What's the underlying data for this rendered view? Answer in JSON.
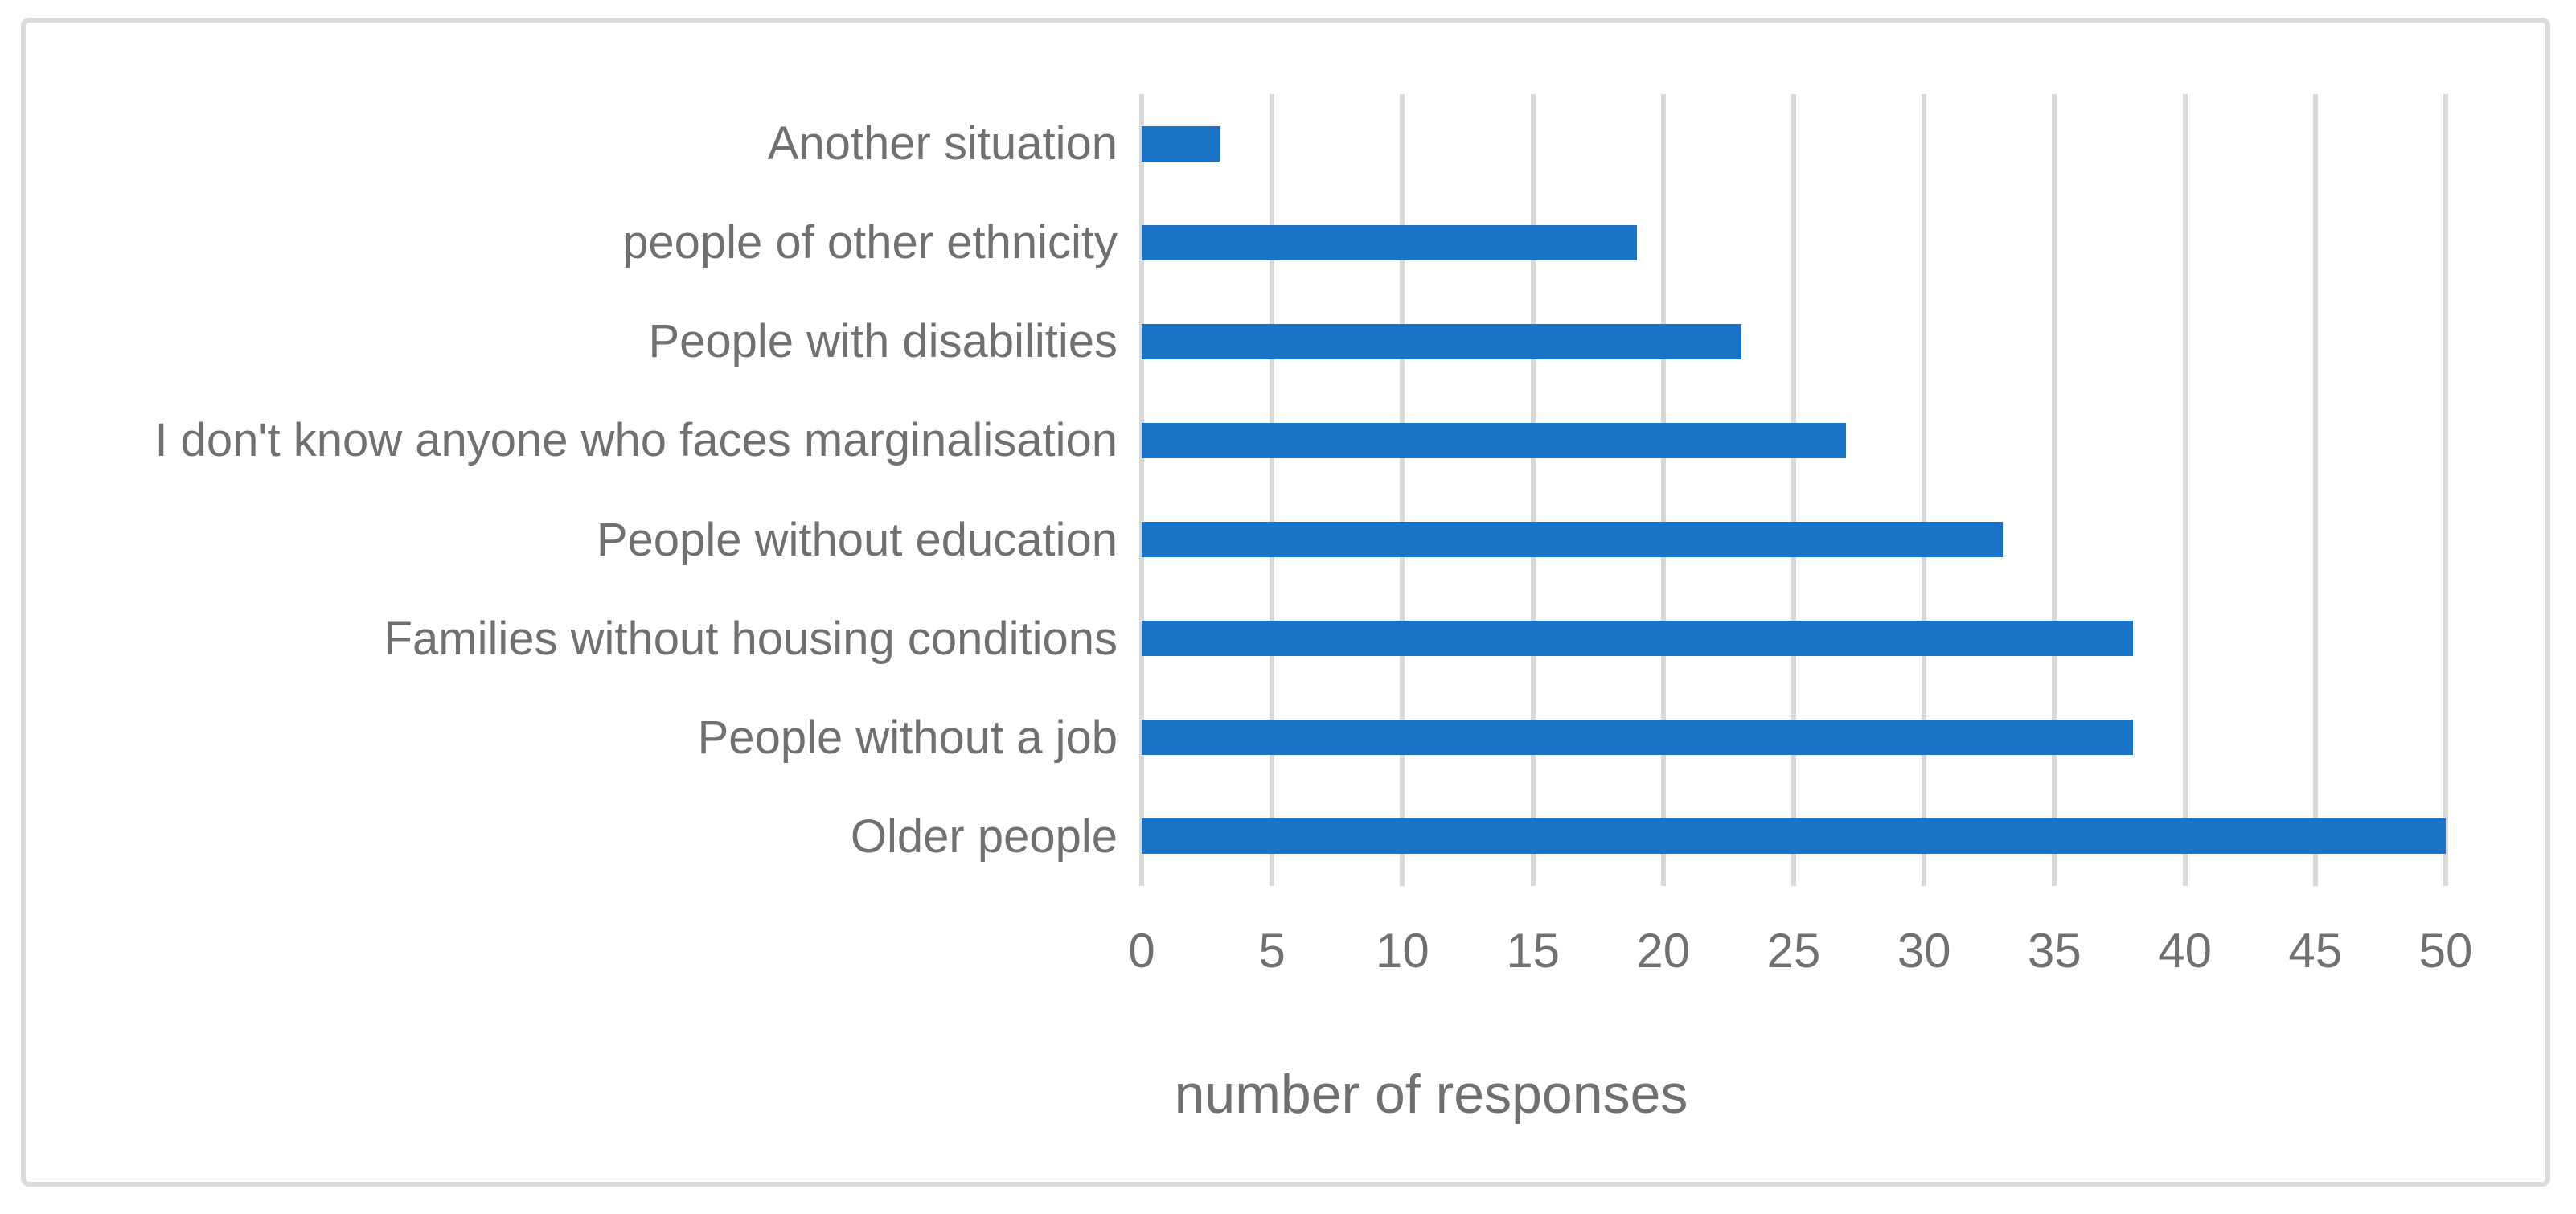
{
  "chart_data": {
    "type": "bar",
    "orientation": "horizontal",
    "title": "",
    "xlabel": "number of responses",
    "ylabel": "",
    "categories": [
      "Another situation",
      "people of other ethnicity",
      "People with disabilities",
      "I don't know anyone who faces marginalisation",
      "People without education",
      "Families without housing conditions",
      "People without a job",
      "Older people"
    ],
    "values": [
      3,
      19,
      23,
      27,
      33,
      38,
      38,
      50
    ],
    "xlim": [
      0,
      50
    ],
    "xticks": [
      0,
      5,
      10,
      15,
      20,
      25,
      30,
      35,
      40,
      45,
      50
    ],
    "grid": true,
    "legend": false,
    "colors": {
      "bar": "#1B73C7",
      "gridline": "#D9D9D9",
      "frame_border": "#DBDBDB",
      "text": "#707070",
      "background": "#FFFFFF"
    }
  }
}
